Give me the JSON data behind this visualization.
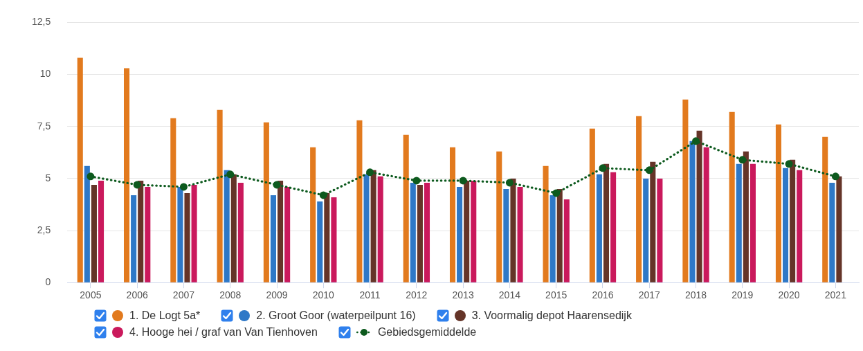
{
  "chart_data": {
    "type": "bar",
    "categories": [
      "2005",
      "2006",
      "2007",
      "2008",
      "2009",
      "2010",
      "2011",
      "2012",
      "2013",
      "2014",
      "2015",
      "2016",
      "2017",
      "2018",
      "2019",
      "2020",
      "2021"
    ],
    "series": [
      {
        "name": "1. De Logt 5a*",
        "color": "#e27a1e",
        "values": [
          10.8,
          10.3,
          7.9,
          8.3,
          7.7,
          6.5,
          7.8,
          7.1,
          6.5,
          6.3,
          5.6,
          7.4,
          8.0,
          8.8,
          8.2,
          7.6,
          7.0
        ]
      },
      {
        "name": "2. Groot Goor (waterpeilpunt 16)",
        "color": "#2e78c7",
        "values": [
          5.6,
          4.2,
          4.6,
          5.4,
          4.2,
          3.9,
          5.2,
          4.8,
          4.6,
          4.5,
          4.2,
          5.2,
          5.0,
          6.8,
          5.7,
          5.5,
          4.8
        ]
      },
      {
        "name": "3. Voormalig depot Haarensedijk",
        "color": "#653428",
        "values": [
          4.7,
          4.9,
          4.3,
          5.2,
          4.9,
          4.3,
          5.4,
          4.7,
          4.9,
          5.0,
          4.5,
          5.7,
          5.8,
          7.3,
          6.3,
          5.9,
          5.1
        ]
      },
      {
        "name": "4. Hooge hei / graf van Van Tienhoven",
        "color": "#ca195c",
        "values": [
          4.9,
          4.6,
          4.7,
          4.8,
          4.6,
          4.1,
          5.1,
          4.8,
          4.9,
          4.6,
          4.0,
          5.3,
          5.0,
          6.5,
          5.7,
          5.4,
          null
        ]
      },
      {
        "name": "Gebiedsgemiddelde",
        "type": "line",
        "color": "#0d5a1e",
        "values": [
          5.1,
          4.7,
          4.6,
          5.2,
          4.7,
          4.2,
          5.3,
          4.9,
          4.9,
          4.8,
          4.3,
          5.5,
          5.4,
          6.8,
          5.9,
          5.7,
          5.1
        ]
      }
    ],
    "ylim": [
      0,
      12.5
    ],
    "yticks": [
      0,
      {
        "value": 2.5,
        "label": "2,5"
      },
      5,
      {
        "value": 7.5,
        "label": "7,5"
      },
      10,
      {
        "value": 12.5,
        "label": "12,5"
      }
    ],
    "grid": "y",
    "legend": "bottom",
    "marker": "circle",
    "line_style": "dotted"
  }
}
